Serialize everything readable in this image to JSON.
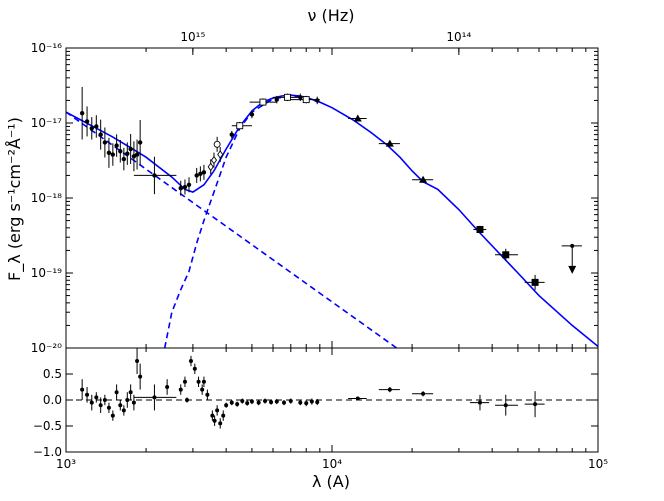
{
  "chart_data": [
    {
      "type": "scatter",
      "panel": "top",
      "x_scale": "log",
      "y_scale": "log",
      "xlim": [
        1000,
        100000
      ],
      "ylim": [
        1e-20,
        1e-16
      ],
      "top_axis_label": "ν (Hz)",
      "ylabel": "F_λ (erg s⁻¹cm⁻²Å⁻¹)",
      "x_ticks": [
        {
          "value": 1000,
          "label": "10³"
        },
        {
          "value": 10000,
          "label": "10⁴"
        },
        {
          "value": 100000,
          "label": "10⁵"
        }
      ],
      "top_ticks": [
        {
          "value": 2997.9,
          "label": "10¹⁵"
        },
        {
          "value": 29979,
          "label": "10¹⁴"
        }
      ],
      "y_ticks": [
        {
          "value": 1e-16,
          "label": "10⁻¹⁶"
        },
        {
          "value": 1e-17,
          "label": "10⁻¹⁷"
        },
        {
          "value": 1e-18,
          "label": "10⁻¹⁸"
        },
        {
          "value": 1e-19,
          "label": "10⁻¹⁹"
        },
        {
          "value": 1e-20,
          "label": "10⁻²⁰"
        }
      ],
      "series": [
        {
          "name": "total model",
          "style": "solid",
          "color": "#0000ff",
          "points": [
            [
              1000,
              1.4e-17
            ],
            [
              1500,
              6.5e-18
            ],
            [
              2000,
              3.5e-18
            ],
            [
              2500,
              1.9e-18
            ],
            [
              2800,
              1.3e-18
            ],
            [
              3000,
              1.2e-18
            ],
            [
              3300,
              1.5e-18
            ],
            [
              3600,
              2.3e-18
            ],
            [
              4000,
              4.5e-18
            ],
            [
              4500,
              9e-18
            ],
            [
              5000,
              1.45e-17
            ],
            [
              5500,
              1.9e-17
            ],
            [
              6000,
              2.15e-17
            ],
            [
              6500,
              2.3e-17
            ],
            [
              7000,
              2.35e-17
            ],
            [
              7500,
              2.3e-17
            ],
            [
              8000,
              2.2e-17
            ],
            [
              9000,
              1.9e-17
            ],
            [
              10000,
              1.6e-17
            ],
            [
              12000,
              1.1e-17
            ],
            [
              14000,
              7.5e-18
            ],
            [
              16000,
              5.2e-18
            ],
            [
              18000,
              3.5e-18
            ],
            [
              20000,
              2.3e-18
            ],
            [
              22000,
              1.65e-18
            ],
            [
              25000,
              1.3e-18
            ],
            [
              30000,
              7e-19
            ],
            [
              35000,
              3.8e-19
            ],
            [
              40000,
              2.3e-19
            ],
            [
              50000,
              1e-19
            ],
            [
              60000,
              5e-20
            ],
            [
              80000,
              2e-20
            ],
            [
              100000,
              1.05e-20
            ]
          ]
        },
        {
          "name": "power-law component",
          "style": "dashed",
          "color": "#0000ff",
          "points": [
            [
              1000,
              1.4e-17
            ],
            [
              17500,
              1e-20
            ]
          ]
        },
        {
          "name": "thermal component",
          "style": "dashed",
          "color": "#0000ff",
          "points": [
            [
              2350,
              1e-20
            ],
            [
              2500,
              3e-20
            ],
            [
              2700,
              6e-20
            ],
            [
              2900,
              1.05e-19
            ],
            [
              3100,
              2.5e-19
            ],
            [
              3300,
              5e-19
            ],
            [
              3600,
              1.2e-18
            ],
            [
              4000,
              3.5e-18
            ],
            [
              4500,
              8.5e-18
            ],
            [
              5000,
              1.4e-17
            ],
            [
              6000,
              2.1e-17
            ],
            [
              7000,
              2.3e-17
            ],
            [
              8000,
              2.15e-17
            ],
            [
              9000,
              1.9e-17
            ]
          ]
        }
      ],
      "data": [
        {
          "x": 1150,
          "y": 1.35e-17,
          "yerr": 0.35,
          "marker": "dot"
        },
        {
          "x": 1200,
          "y": 1.05e-17,
          "yerr": 0.2,
          "marker": "dot"
        },
        {
          "x": 1250,
          "y": 8.5e-18,
          "yerr": 0.15,
          "marker": "dot"
        },
        {
          "x": 1300,
          "y": 9e-18,
          "yerr": 0.15,
          "marker": "dot"
        },
        {
          "x": 1350,
          "y": 7e-18,
          "yerr": 0.2,
          "marker": "dot"
        },
        {
          "x": 1400,
          "y": 5.5e-18,
          "yerr": 0.2,
          "marker": "dot"
        },
        {
          "x": 1450,
          "y": 4e-18,
          "yerr": 0.2,
          "marker": "dot"
        },
        {
          "x": 1500,
          "y": 3.8e-18,
          "yerr": 0.15,
          "marker": "dot"
        },
        {
          "x": 1550,
          "y": 5e-18,
          "yerr": 0.15,
          "marker": "dot"
        },
        {
          "x": 1600,
          "y": 4.2e-18,
          "yerr": 0.15,
          "marker": "dot"
        },
        {
          "x": 1650,
          "y": 3.3e-18,
          "yerr": 0.15,
          "marker": "dot"
        },
        {
          "x": 1700,
          "y": 3.9e-18,
          "yerr": 0.15,
          "marker": "dot"
        },
        {
          "x": 1750,
          "y": 4.5e-18,
          "yerr": 0.2,
          "marker": "dot"
        },
        {
          "x": 1800,
          "y": 3.6e-18,
          "yerr": 0.2,
          "marker": "dot"
        },
        {
          "x": 1850,
          "y": 3.8e-18,
          "yerr": 0.2,
          "marker": "dot"
        },
        {
          "x": 1900,
          "y": 5.5e-18,
          "yerr": 0.3,
          "marker": "dot"
        },
        {
          "x": 2150,
          "y": 2e-18,
          "yerr": 0.25,
          "xerr": [
            1800,
            2600
          ],
          "marker": "dot"
        },
        {
          "x": 2700,
          "y": 1.35e-18,
          "yerr": 0.1,
          "marker": "dot"
        },
        {
          "x": 2800,
          "y": 1.4e-18,
          "yerr": 0.1,
          "marker": "dot"
        },
        {
          "x": 2900,
          "y": 1.5e-18,
          "yerr": 0.1,
          "marker": "dot"
        },
        {
          "x": 3100,
          "y": 2e-18,
          "yerr": 0.1,
          "marker": "dot"
        },
        {
          "x": 3200,
          "y": 2.1e-18,
          "yerr": 0.1,
          "marker": "dot"
        },
        {
          "x": 3300,
          "y": 2.2e-18,
          "yerr": 0.1,
          "marker": "dot"
        },
        {
          "x": 3500,
          "y": 2.6e-18,
          "yerr": 0.1,
          "marker": "open-diamond"
        },
        {
          "x": 3600,
          "y": 3.2e-18,
          "yerr": 0.1,
          "marker": "open-diamond"
        },
        {
          "x": 3700,
          "y": 5.2e-18,
          "yerr": 0.1,
          "marker": "open-circle"
        },
        {
          "x": 3800,
          "y": 3.8e-18,
          "yerr": 0.1,
          "marker": "open-diamond"
        },
        {
          "x": 4200,
          "y": 7e-18,
          "yerr": 0.05,
          "marker": "dot"
        },
        {
          "x": 4500,
          "y": 9.2e-18,
          "yerr": 0.05,
          "xerr": [
            4200,
            5000
          ],
          "marker": "open-square"
        },
        {
          "x": 5000,
          "y": 1.3e-17,
          "yerr": 0.05,
          "marker": "dot"
        },
        {
          "x": 5500,
          "y": 1.9e-17,
          "yerr": 0.05,
          "xerr": [
            4900,
            6200
          ],
          "marker": "open-square"
        },
        {
          "x": 6200,
          "y": 2.05e-17,
          "yerr": 0.05,
          "marker": "dot"
        },
        {
          "x": 6800,
          "y": 2.2e-17,
          "yerr": 0.05,
          "xerr": [
            6000,
            7600
          ],
          "marker": "open-square"
        },
        {
          "x": 7600,
          "y": 2.2e-17,
          "yerr": 0.05,
          "marker": "dot"
        },
        {
          "x": 8000,
          "y": 2.05e-17,
          "yerr": 0.05,
          "xerr": [
            7000,
            9000
          ],
          "marker": "open-square"
        },
        {
          "x": 8800,
          "y": 2e-17,
          "yerr": 0.05,
          "marker": "dot"
        },
        {
          "x": 12500,
          "y": 1.15e-17,
          "yerr": 0.04,
          "xerr": [
            11500,
            13500
          ],
          "marker": "triangle"
        },
        {
          "x": 16500,
          "y": 5.3e-18,
          "yerr": 0.04,
          "xerr": [
            15000,
            18000
          ],
          "marker": "triangle"
        },
        {
          "x": 22000,
          "y": 1.75e-18,
          "yerr": 0.04,
          "xerr": [
            20000,
            24000
          ],
          "marker": "triangle"
        },
        {
          "x": 36000,
          "y": 3.8e-19,
          "yerr": 0.05,
          "xerr": [
            34000,
            38000
          ],
          "marker": "square"
        },
        {
          "x": 45000,
          "y": 1.75e-19,
          "yerr": 0.08,
          "xerr": [
            41000,
            50000
          ],
          "marker": "square"
        },
        {
          "x": 58000,
          "y": 7.5e-20,
          "yerr": 0.1,
          "xerr": [
            53000,
            63000
          ],
          "marker": "square"
        },
        {
          "x": 80000,
          "y": 2.3e-19,
          "xerr": [
            73000,
            87000
          ],
          "marker": "upper-limit"
        }
      ]
    },
    {
      "type": "scatter",
      "panel": "bottom",
      "x_scale": "log",
      "xlim": [
        1000,
        100000
      ],
      "ylim": [
        -1.0,
        1.0
      ],
      "xlabel": "λ (A)",
      "x_ticks": [
        {
          "value": 1000,
          "label": "10³"
        },
        {
          "value": 10000,
          "label": "10⁴"
        },
        {
          "value": 100000,
          "label": "10⁵"
        }
      ],
      "y_ticks": [
        {
          "value": 0.5,
          "label": "0.5"
        },
        {
          "value": 0.0,
          "label": "0.0"
        },
        {
          "value": -0.5,
          "label": "−0.5"
        },
        {
          "value": -1.0,
          "label": "−1.0"
        }
      ],
      "reference_line": 0.0,
      "residuals": [
        {
          "x": 1150,
          "y": 0.2,
          "err": 0.2
        },
        {
          "x": 1200,
          "y": 0.1,
          "err": 0.15
        },
        {
          "x": 1250,
          "y": -0.05,
          "err": 0.15
        },
        {
          "x": 1300,
          "y": 0.05,
          "err": 0.1
        },
        {
          "x": 1350,
          "y": -0.1,
          "err": 0.15
        },
        {
          "x": 1400,
          "y": 0.0,
          "err": 0.1
        },
        {
          "x": 1450,
          "y": -0.15,
          "err": 0.1
        },
        {
          "x": 1500,
          "y": -0.3,
          "err": 0.1
        },
        {
          "x": 1550,
          "y": 0.15,
          "err": 0.15
        },
        {
          "x": 1600,
          "y": -0.1,
          "err": 0.1
        },
        {
          "x": 1650,
          "y": -0.2,
          "err": 0.1
        },
        {
          "x": 1700,
          "y": 0.0,
          "err": 0.15
        },
        {
          "x": 1750,
          "y": 0.15,
          "err": 0.15
        },
        {
          "x": 1800,
          "y": -0.05,
          "err": 0.15
        },
        {
          "x": 1850,
          "y": 0.75,
          "err": 0.25
        },
        {
          "x": 1900,
          "y": 0.45,
          "err": 0.25
        },
        {
          "x": 2150,
          "y": 0.05,
          "err": 0.25,
          "xerr": [
            1800,
            2600
          ]
        },
        {
          "x": 2400,
          "y": 0.25,
          "err": 0.15
        },
        {
          "x": 2700,
          "y": 0.2,
          "err": 0.1
        },
        {
          "x": 2800,
          "y": 0.35,
          "err": 0.1
        },
        {
          "x": 2850,
          "y": 0.0,
          "err": 0.05
        },
        {
          "x": 2950,
          "y": 0.75,
          "err": 0.1
        },
        {
          "x": 3050,
          "y": 0.6,
          "err": 0.1
        },
        {
          "x": 3150,
          "y": 0.35,
          "err": 0.1
        },
        {
          "x": 3250,
          "y": 0.2,
          "err": 0.1
        },
        {
          "x": 3300,
          "y": 0.35,
          "err": 0.1
        },
        {
          "x": 3400,
          "y": 0.1,
          "err": 0.1
        },
        {
          "x": 3550,
          "y": -0.3,
          "err": 0.1
        },
        {
          "x": 3620,
          "y": -0.4,
          "err": 0.1
        },
        {
          "x": 3700,
          "y": -0.2,
          "err": 0.1
        },
        {
          "x": 3800,
          "y": -0.45,
          "err": 0.1
        },
        {
          "x": 3900,
          "y": -0.3,
          "err": 0.1
        },
        {
          "x": 4000,
          "y": -0.1,
          "err": 0.05
        },
        {
          "x": 4200,
          "y": -0.05,
          "err": 0.05
        },
        {
          "x": 4400,
          "y": -0.08,
          "err": 0.05
        },
        {
          "x": 4600,
          "y": -0.02,
          "err": 0.05
        },
        {
          "x": 4800,
          "y": -0.06,
          "err": 0.05
        },
        {
          "x": 5000,
          "y": -0.03,
          "err": 0.05
        },
        {
          "x": 5300,
          "y": -0.05,
          "err": 0.05
        },
        {
          "x": 5600,
          "y": -0.02,
          "err": 0.05
        },
        {
          "x": 5900,
          "y": -0.04,
          "err": 0.05
        },
        {
          "x": 6200,
          "y": -0.03,
          "err": 0.05
        },
        {
          "x": 6600,
          "y": -0.05,
          "err": 0.05
        },
        {
          "x": 7000,
          "y": -0.02,
          "err": 0.05
        },
        {
          "x": 7600,
          "y": -0.05,
          "err": 0.05
        },
        {
          "x": 8000,
          "y": -0.06,
          "err": 0.06
        },
        {
          "x": 8400,
          "y": -0.03,
          "err": 0.06
        },
        {
          "x": 8800,
          "y": -0.04,
          "err": 0.06
        },
        {
          "x": 12500,
          "y": 0.03,
          "err": 0.03,
          "xerr": [
            11500,
            13500
          ]
        },
        {
          "x": 16500,
          "y": 0.2,
          "err": 0.05,
          "xerr": [
            15000,
            18000
          ]
        },
        {
          "x": 22000,
          "y": 0.12,
          "err": 0.05,
          "xerr": [
            20000,
            24000
          ]
        },
        {
          "x": 36000,
          "y": -0.05,
          "err": 0.15,
          "xerr": [
            33000,
            39000
          ]
        },
        {
          "x": 45000,
          "y": -0.1,
          "err": 0.2,
          "xerr": [
            41000,
            50000
          ]
        },
        {
          "x": 58000,
          "y": -0.08,
          "err": 0.25,
          "xerr": [
            53000,
            63000
          ]
        }
      ]
    }
  ]
}
